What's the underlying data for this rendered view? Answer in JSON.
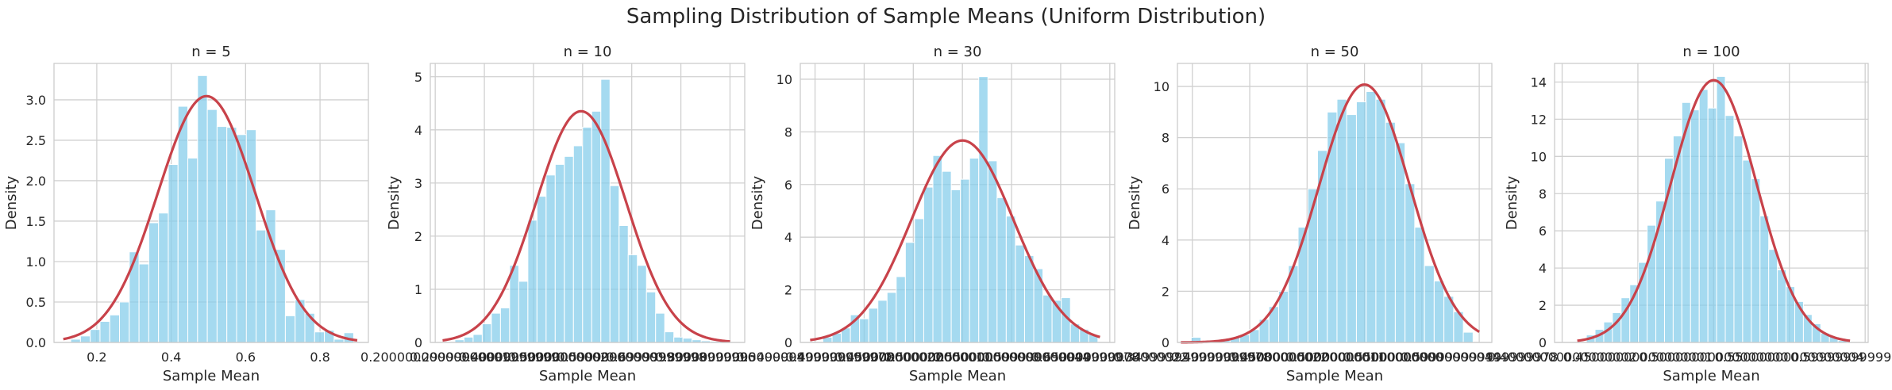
{
  "figure": {
    "title": "Sampling Distribution of Sample Means (Uniform Distribution)"
  },
  "colors": {
    "bar": "#87ceeb",
    "curve": "#c8424a",
    "grid": "#d0d0d0",
    "frame": "#cccccc"
  },
  "chart_data": [
    {
      "type": "bar",
      "title": "n = 5",
      "xlabel": "Sample Mean",
      "ylabel": "Density",
      "xlim": [
        0.085,
        0.93
      ],
      "ylim": [
        0,
        3.45
      ],
      "xticks": [
        0.2,
        0.4,
        0.6,
        0.8
      ],
      "yticks": [
        0.0,
        0.5,
        1.0,
        1.5,
        2.0,
        2.5,
        3.0
      ],
      "bin_start": 0.13,
      "bin_width": 0.02622,
      "values": [
        0.04,
        0.08,
        0.16,
        0.26,
        0.34,
        0.5,
        1.12,
        0.97,
        1.48,
        1.6,
        2.2,
        2.92,
        2.28,
        3.3,
        2.88,
        2.67,
        2.66,
        2.57,
        2.63,
        1.39,
        1.64,
        1.15,
        0.33,
        0.53,
        0.36,
        0.13,
        0.15,
        0.04,
        0.12,
        0.0
      ],
      "curve": {
        "mean": 0.495,
        "sd": 0.131,
        "x_range": [
          0.11,
          0.9
        ]
      },
      "grid": true
    },
    {
      "type": "bar",
      "title": "n = 10",
      "xlabel": "Sample Mean",
      "ylabel": "Density",
      "xlim": [
        0.19,
        0.83
      ],
      "ylim": [
        0,
        5.25
      ],
      "xticks": [
        0.2,
        0.3,
        0.4,
        0.5,
        0.6,
        0.7,
        0.8
      ],
      "yticks": [
        0,
        1,
        2,
        3,
        4,
        5
      ],
      "bin_start": 0.24,
      "bin_width": 0.01857,
      "values": [
        0.05,
        0.1,
        0.15,
        0.35,
        0.55,
        0.65,
        1.45,
        1.15,
        2.3,
        2.75,
        3.15,
        3.35,
        3.5,
        3.7,
        4.05,
        4.35,
        4.95,
        2.95,
        2.2,
        1.65,
        1.45,
        0.95,
        0.55,
        0.2,
        0.1,
        0.08,
        0.05,
        0.03,
        0.02,
        0.05
      ],
      "curve": {
        "mean": 0.497,
        "sd": 0.0917,
        "x_range": [
          0.215,
          0.8
        ]
      },
      "grid": true
    },
    {
      "type": "bar",
      "title": "n = 30",
      "xlabel": "Sample Mean",
      "ylabel": "Density",
      "xlim": [
        0.335,
        0.655
      ],
      "ylim": [
        0,
        10.6
      ],
      "xticks": [
        0.35,
        0.4,
        0.45,
        0.5,
        0.55,
        0.6,
        0.65
      ],
      "yticks": [
        0,
        2,
        4,
        6,
        8,
        10
      ],
      "bin_start": 0.358,
      "bin_width": 0.00933,
      "values": [
        0.2,
        0.35,
        0.55,
        1.05,
        0.9,
        1.3,
        1.6,
        1.9,
        2.5,
        3.8,
        4.7,
        5.9,
        7.1,
        6.5,
        5.8,
        6.2,
        7.0,
        10.1,
        6.9,
        5.5,
        4.8,
        3.7,
        3.3,
        2.8,
        1.8,
        1.6,
        1.7,
        0.7,
        0.5,
        0.3
      ],
      "curve": {
        "mean": 0.5,
        "sd": 0.052,
        "x_range": [
          0.345,
          0.64
        ]
      },
      "grid": true
    },
    {
      "type": "bar",
      "title": "n = 50",
      "xlabel": "Sample Mean",
      "ylabel": "Density",
      "xlim": [
        0.337,
        0.611
      ],
      "ylim": [
        0,
        10.9
      ],
      "xticks": [
        0.35,
        0.4,
        0.45,
        0.5,
        0.55,
        0.6
      ],
      "yticks": [
        0,
        2,
        4,
        6,
        8,
        10
      ],
      "bin_start": 0.349,
      "bin_width": 0.00847,
      "values": [
        0.2,
        0.0,
        0.0,
        0.1,
        0.2,
        0.3,
        0.5,
        0.9,
        1.4,
        2.0,
        3.0,
        4.5,
        6.0,
        7.5,
        9.0,
        9.5,
        8.9,
        9.4,
        9.8,
        9.5,
        8.6,
        7.8,
        6.2,
        4.5,
        3.0,
        2.4,
        1.8,
        1.2,
        0.4,
        0.0
      ],
      "curve": {
        "mean": 0.5,
        "sd": 0.0396,
        "x_range": [
          0.34,
          0.6
        ]
      },
      "grid": true
    },
    {
      "type": "bar",
      "title": "n = 100",
      "xlabel": "Sample Mean",
      "ylabel": "Density",
      "xlim": [
        0.395,
        0.602
      ],
      "ylim": [
        0,
        15.0
      ],
      "xticks": [
        0.4,
        0.45,
        0.5,
        0.55,
        0.6
      ],
      "yticks": [
        0,
        2,
        4,
        6,
        8,
        10,
        12,
        14
      ],
      "bin_start": 0.416,
      "bin_width": 0.00573,
      "values": [
        0.4,
        0.7,
        1.1,
        1.6,
        2.4,
        3.1,
        4.3,
        6.3,
        7.6,
        9.9,
        11.1,
        12.9,
        12.5,
        13.6,
        12.6,
        14.3,
        12.2,
        11.1,
        9.8,
        8.8,
        6.8,
        5.0,
        3.9,
        3.0,
        2.2,
        1.5,
        1.0,
        0.5,
        0.3,
        0.1
      ],
      "curve": {
        "mean": 0.5,
        "sd": 0.0283,
        "x_range": [
          0.41,
          0.59
        ]
      },
      "grid": true
    }
  ]
}
